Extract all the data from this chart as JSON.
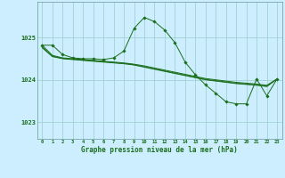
{
  "title": "Graphe pression niveau de la mer (hPa)",
  "bg_color": "#cceeff",
  "grid_color": "#99cccc",
  "line_color": "#1a6e1a",
  "xlim": [
    -0.5,
    23.5
  ],
  "ylim": [
    1022.6,
    1025.85
  ],
  "yticks": [
    1023,
    1024,
    1025
  ],
  "xticks": [
    0,
    1,
    2,
    3,
    4,
    5,
    6,
    7,
    8,
    9,
    10,
    11,
    12,
    13,
    14,
    15,
    16,
    17,
    18,
    19,
    20,
    21,
    22,
    23
  ],
  "main_series": [
    1024.82,
    1024.82,
    1024.6,
    1024.52,
    1024.5,
    1024.5,
    1024.48,
    1024.52,
    1024.68,
    1025.22,
    1025.48,
    1025.38,
    1025.18,
    1024.88,
    1024.42,
    1024.12,
    1023.88,
    1023.68,
    1023.48,
    1023.43,
    1023.43,
    1024.02,
    1023.62,
    1024.02
  ],
  "series2": [
    1024.82,
    1024.58,
    1024.52,
    1024.5,
    1024.48,
    1024.46,
    1024.44,
    1024.42,
    1024.4,
    1024.37,
    1024.33,
    1024.28,
    1024.23,
    1024.18,
    1024.13,
    1024.08,
    1024.03,
    1024.0,
    1023.97,
    1023.94,
    1023.92,
    1023.9,
    1023.87,
    1024.02
  ],
  "series3": [
    1024.78,
    1024.56,
    1024.51,
    1024.49,
    1024.47,
    1024.45,
    1024.43,
    1024.41,
    1024.39,
    1024.36,
    1024.31,
    1024.26,
    1024.21,
    1024.16,
    1024.11,
    1024.06,
    1024.01,
    1023.98,
    1023.95,
    1023.92,
    1023.9,
    1023.88,
    1023.85,
    1024.02
  ],
  "series4": [
    1024.76,
    1024.55,
    1024.5,
    1024.48,
    1024.46,
    1024.44,
    1024.42,
    1024.4,
    1024.38,
    1024.35,
    1024.3,
    1024.25,
    1024.2,
    1024.15,
    1024.1,
    1024.05,
    1024.0,
    1023.97,
    1023.94,
    1023.91,
    1023.89,
    1023.87,
    1023.84,
    1024.02
  ]
}
